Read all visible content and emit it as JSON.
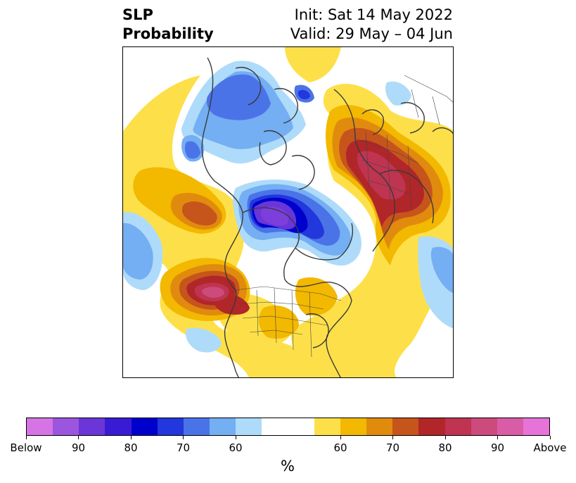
{
  "title": {
    "left": "SLP\nProbability",
    "init": "Init: Sat 14 May 2022",
    "valid": "Valid: 29 May – 04 Jun"
  },
  "colorbar": {
    "colors": [
      "#d674e6",
      "#9b55df",
      "#6a36d8",
      "#3a1bd4",
      "#0000cc",
      "#2237dc",
      "#4b73e8",
      "#74aef3",
      "#aedbfa",
      "#ffffff",
      "#ffffff",
      "#fde049",
      "#f3b800",
      "#e08b0e",
      "#c6551b",
      "#b12628",
      "#be3451",
      "#cc4a7c",
      "#d95ca6",
      "#e673d8"
    ],
    "ticks": [
      {
        "label": "Below",
        "index": 0
      },
      {
        "label": "90",
        "index": 2
      },
      {
        "label": "80",
        "index": 4
      },
      {
        "label": "70",
        "index": 6
      },
      {
        "label": "60",
        "index": 8
      },
      {
        "label": "60",
        "index": 12
      },
      {
        "label": "70",
        "index": 14
      },
      {
        "label": "80",
        "index": 16
      },
      {
        "label": "90",
        "index": 18
      },
      {
        "label": "Above",
        "index": 20
      }
    ],
    "unit": "%"
  }
}
